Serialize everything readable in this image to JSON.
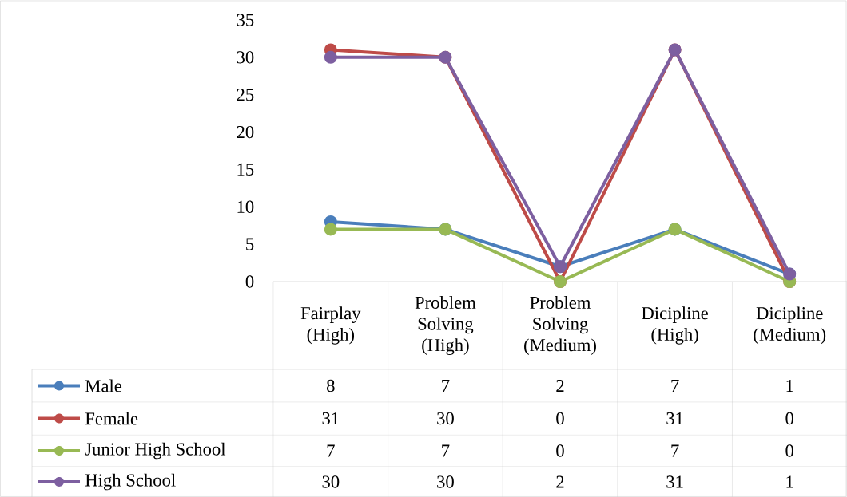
{
  "chart_data": {
    "type": "line",
    "categories": [
      "Fairplay (High)",
      "Problem Solving (High)",
      "Problem Solving (Medium)",
      "Dicipline (High)",
      "Dicipline (Medium)"
    ],
    "series": [
      {
        "name": "Male",
        "color": "#4a7ebb",
        "values": [
          8,
          7,
          2,
          7,
          1
        ]
      },
      {
        "name": "Female",
        "color": "#be4b48",
        "values": [
          31,
          30,
          0,
          31,
          0
        ]
      },
      {
        "name": "Junior High School",
        "color": "#98b954",
        "values": [
          7,
          7,
          0,
          7,
          0
        ]
      },
      {
        "name": "High School",
        "color": "#7d5fa0",
        "values": [
          30,
          30,
          2,
          31,
          1
        ]
      }
    ],
    "ylim": [
      0,
      35
    ],
    "yticks": [
      0,
      5,
      10,
      15,
      20,
      25,
      30,
      35
    ],
    "grid": false,
    "legend": "bottom",
    "marker": "circle",
    "line_style": "solid",
    "data_labels": true
  }
}
